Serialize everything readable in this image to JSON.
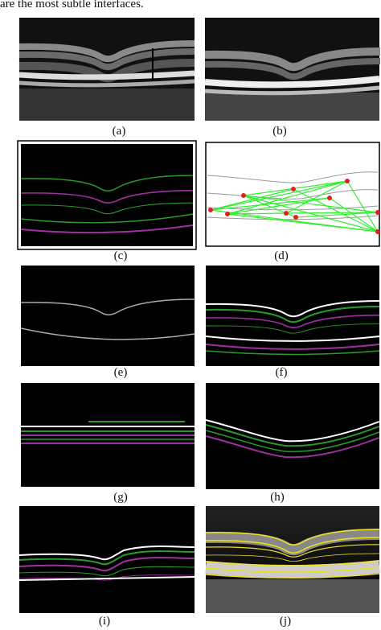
{
  "intro_text": "are the most subtle interfaces.",
  "panels": [
    {
      "label": "(a)"
    },
    {
      "label": "(b)"
    },
    {
      "label": "(c)"
    },
    {
      "label": "(d)"
    },
    {
      "label": "(e)"
    },
    {
      "label": "(f)"
    },
    {
      "label": "(g)"
    },
    {
      "label": "(h)"
    },
    {
      "label": "(i)"
    },
    {
      "label": "(j)"
    }
  ]
}
